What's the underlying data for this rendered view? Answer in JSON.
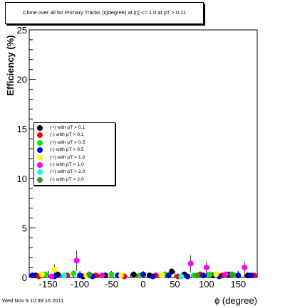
{
  "title": "Clone  over all for Primary Tracks (η|degree) at |η| <= 1.0 at pT > 0.11",
  "footer": "Wed Nov  9 10:39:16 2011",
  "chart_data": {
    "type": "scatter",
    "xlabel": "ϕ (degree)",
    "ylabel": "Efficiency (%)",
    "xlim": [
      -180,
      180
    ],
    "ylim": [
      0,
      25
    ],
    "x_ticks": [
      "-150",
      "-100",
      "-50",
      "0",
      "50",
      "100",
      "150"
    ],
    "y_ticks": [
      "0",
      "5",
      "10",
      "15",
      "20",
      "25"
    ],
    "grid": false,
    "legend_position": "left-middle",
    "series": [
      {
        "name": "(+) with pT > 0.1",
        "color": "#000000",
        "points": [
          [
            -170,
            0.2
          ],
          [
            -135,
            0.3
          ],
          [
            -95,
            0.1
          ],
          [
            -60,
            0.2
          ],
          [
            -15,
            0.3
          ],
          [
            10,
            0.2
          ],
          [
            45,
            0.6
          ],
          [
            65,
            0.3
          ],
          [
            110,
            0.2
          ],
          [
            135,
            0.3
          ],
          [
            165,
            0.2
          ]
        ]
      },
      {
        "name": "(-) with pT > 0.1",
        "color": "#ff0000",
        "points": [
          [
            -165,
            0.1
          ],
          [
            -120,
            0.2
          ],
          [
            -75,
            0.2
          ],
          [
            -30,
            0.1
          ],
          [
            20,
            0.2
          ],
          [
            55,
            0.1
          ],
          [
            90,
            0.3
          ],
          [
            125,
            0.2
          ],
          [
            175,
            0.2
          ]
        ]
      },
      {
        "name": "(+) with pT > 0.5",
        "color": "#00ee00",
        "points": [
          [
            -155,
            0.3
          ],
          [
            -110,
            0.4
          ],
          [
            -50,
            0.3
          ],
          [
            -5,
            0.2
          ],
          [
            35,
            0.3
          ],
          [
            80,
            0.2
          ],
          [
            105,
            0.3
          ],
          [
            145,
            0.2
          ]
        ]
      },
      {
        "name": "(-) with pT > 0.5",
        "color": "#0000ff",
        "points": [
          [
            -175,
            0.2
          ],
          [
            -140,
            0.1
          ],
          [
            -100,
            0.2
          ],
          [
            -80,
            0.1
          ],
          [
            -40,
            0.2
          ],
          [
            0,
            0.3
          ],
          [
            15,
            0.1
          ],
          [
            40,
            0.2
          ],
          [
            70,
            0.1
          ],
          [
            95,
            0.2
          ],
          [
            120,
            0.1
          ],
          [
            150,
            0.2
          ],
          [
            170,
            0.2
          ]
        ]
      },
      {
        "name": "(+) with pT > 1.0",
        "color": "#ffff00",
        "points": [
          [
            -160,
            0.3
          ],
          [
            -140,
            0.8
          ],
          [
            -90,
            0.2
          ],
          [
            -35,
            0.2
          ],
          [
            30,
            0.2
          ],
          [
            115,
            0.3
          ]
        ]
      },
      {
        "name": "(-) with pT > 1.0",
        "color": "#ff00ff",
        "points": [
          [
            -145,
            0.1
          ],
          [
            -105,
            1.7
          ],
          [
            -65,
            0.2
          ],
          [
            75,
            1.4
          ],
          [
            100,
            1.0
          ],
          [
            160,
            1.0
          ],
          [
            130,
            0.3
          ]
        ]
      },
      {
        "name": "(+) with pT > 2.0",
        "color": "#00ffff",
        "points": [
          [
            -125,
            0.2
          ],
          [
            60,
            0.1
          ]
        ]
      },
      {
        "name": "(-) with pT > 2.0",
        "color": "#339933",
        "points": [
          [
            -85,
            0.3
          ],
          [
            85,
            0.2
          ],
          [
            140,
            0.3
          ]
        ]
      }
    ]
  }
}
